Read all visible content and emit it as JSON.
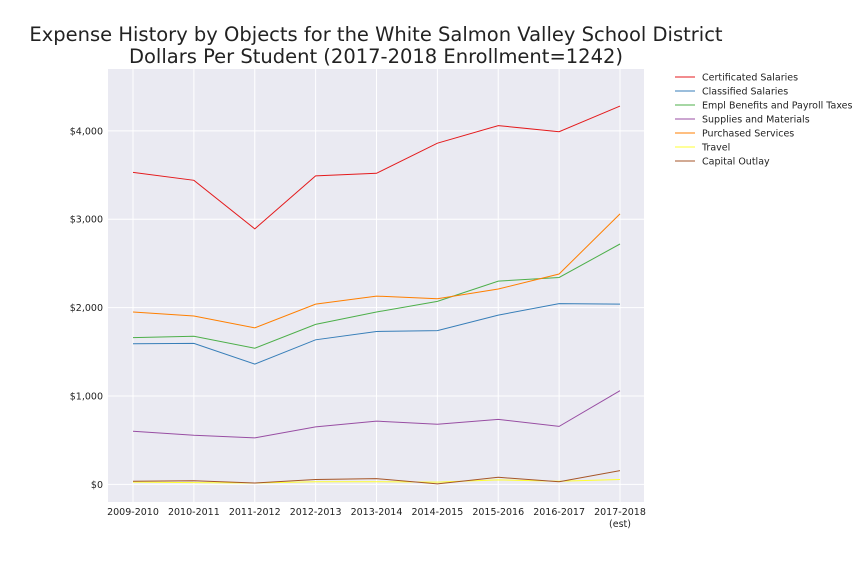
{
  "chart_data": {
    "type": "line",
    "title_line1": "Expense History by Objects for the White Salmon Valley School District",
    "title_line2": "Dollars Per Student (2017-2018 Enrollment=1242)",
    "xlabel": "",
    "ylabel": "",
    "categories": [
      "2009-2010",
      "2010-2011",
      "2011-2012",
      "2012-2013",
      "2013-2014",
      "2014-2015",
      "2015-2016",
      "2016-2017",
      "2017-2018"
    ],
    "last_category_note": "(est)",
    "ylim": [
      -200,
      4700
    ],
    "yticks": [
      0,
      1000,
      2000,
      3000,
      4000
    ],
    "ytick_labels": [
      "$0",
      "$1,000",
      "$2,000",
      "$3,000",
      "$4,000"
    ],
    "grid": true,
    "legend_position": "outside-right",
    "series": [
      {
        "name": "Certificated Salaries",
        "color": "#e41a1c",
        "values": [
          3530,
          3440,
          2890,
          3490,
          3520,
          3860,
          4060,
          3990,
          4280
        ]
      },
      {
        "name": "Classified Salaries",
        "color": "#377eb8",
        "values": [
          1590,
          1595,
          1360,
          1635,
          1730,
          1740,
          1915,
          2045,
          2040
        ]
      },
      {
        "name": "Empl Benefits and Payroll Taxes",
        "color": "#4daf4a",
        "values": [
          1660,
          1675,
          1540,
          1810,
          1950,
          2070,
          2300,
          2340,
          2720
        ]
      },
      {
        "name": "Supplies and Materials",
        "color": "#984ea3",
        "values": [
          600,
          555,
          525,
          650,
          715,
          680,
          735,
          655,
          1060
        ]
      },
      {
        "name": "Purchased Services",
        "color": "#ff7f00",
        "values": [
          1950,
          1905,
          1770,
          2040,
          2130,
          2100,
          2210,
          2380,
          3060
        ]
      },
      {
        "name": "Travel",
        "color": "#ffff33",
        "values": [
          25,
          20,
          15,
          30,
          30,
          25,
          50,
          35,
          55
        ]
      },
      {
        "name": "Capital Outlay",
        "color": "#a65628",
        "values": [
          35,
          40,
          15,
          55,
          65,
          5,
          80,
          30,
          155
        ]
      }
    ]
  }
}
